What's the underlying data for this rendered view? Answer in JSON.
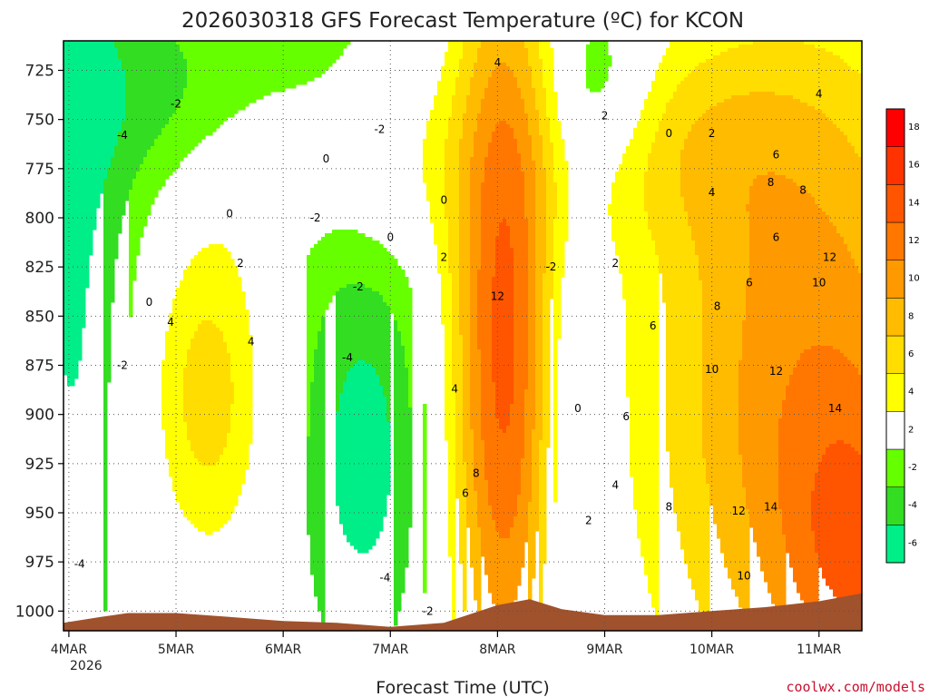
{
  "chart_data": {
    "type": "heatmap",
    "title": "2026030318 GFS Forecast Temperature (ºC) for KCON",
    "xlabel": "Forecast Time (UTC)",
    "ylabel": "",
    "credit": "coolwx.com/models",
    "y_axis": {
      "ticks": [
        "725",
        "750",
        "775",
        "800",
        "825",
        "850",
        "875",
        "900",
        "925",
        "950",
        "975",
        "1000"
      ],
      "range": [
        710,
        1010
      ],
      "inverted": true
    },
    "x_axis": {
      "ticks": [
        "4MAR",
        "5MAR",
        "6MAR",
        "7MAR",
        "8MAR",
        "9MAR",
        "10MAR",
        "11MAR"
      ],
      "year_label": "2026",
      "range_days": [
        -0.05,
        7.4
      ]
    },
    "colorbar": {
      "levels": [
        -6,
        -4,
        -2,
        2,
        4,
        6,
        8,
        10,
        12,
        14,
        16,
        18
      ],
      "labels": [
        "-6",
        "-4",
        "-2",
        "2",
        "4",
        "6",
        "8",
        "10",
        "12",
        "14",
        "16",
        "18"
      ],
      "colors": [
        "#00ee88",
        "#33dd22",
        "#66ff00",
        "#ffffff",
        "#ffff00",
        "#ffdd00",
        "#ffbb00",
        "#ff9900",
        "#ff7700",
        "#ff5500",
        "#ff3300",
        "#ff0000"
      ]
    },
    "terrain_color": "#a0522d",
    "freezing_line_color": "#b0106a",
    "contour_labels": [
      {
        "text": "-2",
        "day": 1.0,
        "p": 742
      },
      {
        "text": "-4",
        "day": 0.5,
        "p": 758
      },
      {
        "text": "-2",
        "day": 2.9,
        "p": 755
      },
      {
        "text": "-2",
        "day": 2.3,
        "p": 800
      },
      {
        "text": "0",
        "day": 2.4,
        "p": 770
      },
      {
        "text": "0",
        "day": 1.5,
        "p": 798
      },
      {
        "text": "0",
        "day": 3.0,
        "p": 810
      },
      {
        "text": "0",
        "day": 3.5,
        "p": 791
      },
      {
        "text": "0",
        "day": 0.75,
        "p": 843
      },
      {
        "text": "2",
        "day": 1.6,
        "p": 823
      },
      {
        "text": "4",
        "day": 0.95,
        "p": 853
      },
      {
        "text": "4",
        "day": 1.7,
        "p": 863
      },
      {
        "text": "-2",
        "day": 0.5,
        "p": 875
      },
      {
        "text": "-2",
        "day": 2.7,
        "p": 835
      },
      {
        "text": "-4",
        "day": 2.6,
        "p": 871
      },
      {
        "text": "-4",
        "day": 2.95,
        "p": 983
      },
      {
        "text": "-2",
        "day": 3.35,
        "p": 1000
      },
      {
        "text": "-4",
        "day": 0.1,
        "p": 976
      },
      {
        "text": "2",
        "day": 3.5,
        "p": 820
      },
      {
        "text": "4",
        "day": 4.0,
        "p": 721
      },
      {
        "text": "12",
        "day": 4.0,
        "p": 840
      },
      {
        "text": "4",
        "day": 3.6,
        "p": 887
      },
      {
        "text": "8",
        "day": 3.8,
        "p": 930
      },
      {
        "text": "6",
        "day": 3.7,
        "p": 940
      },
      {
        "text": "-2",
        "day": 4.5,
        "p": 825
      },
      {
        "text": "0",
        "day": 4.75,
        "p": 897
      },
      {
        "text": "2",
        "day": 5.0,
        "p": 748
      },
      {
        "text": "0",
        "day": 5.6,
        "p": 757
      },
      {
        "text": "2",
        "day": 6.0,
        "p": 757
      },
      {
        "text": "2",
        "day": 5.1,
        "p": 823
      },
      {
        "text": "2",
        "day": 4.85,
        "p": 954
      },
      {
        "text": "4",
        "day": 5.1,
        "p": 936
      },
      {
        "text": "6",
        "day": 5.2,
        "p": 901
      },
      {
        "text": "6",
        "day": 5.45,
        "p": 855
      },
      {
        "text": "4",
        "day": 6.0,
        "p": 787
      },
      {
        "text": "6",
        "day": 6.6,
        "p": 768
      },
      {
        "text": "4",
        "day": 7.0,
        "p": 737
      },
      {
        "text": "8",
        "day": 6.55,
        "p": 782
      },
      {
        "text": "8",
        "day": 6.85,
        "p": 786
      },
      {
        "text": "6",
        "day": 6.6,
        "p": 810
      },
      {
        "text": "6",
        "day": 6.35,
        "p": 833
      },
      {
        "text": "8",
        "day": 6.05,
        "p": 845
      },
      {
        "text": "10",
        "day": 6.0,
        "p": 877
      },
      {
        "text": "12",
        "day": 6.6,
        "p": 878
      },
      {
        "text": "12",
        "day": 7.1,
        "p": 820
      },
      {
        "text": "10",
        "day": 7.0,
        "p": 833
      },
      {
        "text": "14",
        "day": 7.15,
        "p": 897
      },
      {
        "text": "8",
        "day": 5.6,
        "p": 947
      },
      {
        "text": "12",
        "day": 6.25,
        "p": 949
      },
      {
        "text": "14",
        "day": 6.55,
        "p": 947
      },
      {
        "text": "10",
        "day": 6.3,
        "p": 982
      }
    ]
  }
}
